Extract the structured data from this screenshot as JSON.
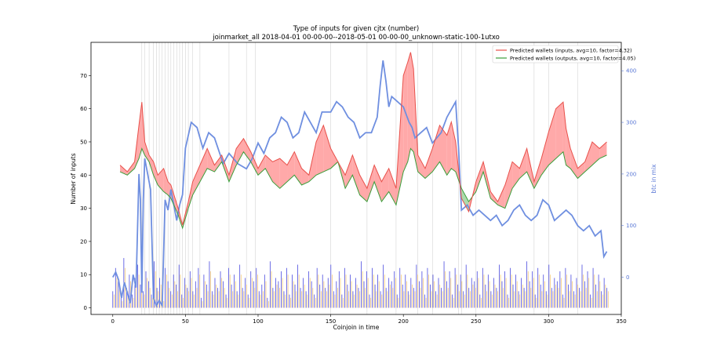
{
  "chart_data": {
    "type": "line",
    "title": "Type of inputs for given cjtx (number)",
    "subtitle": "joinmarket_all 2018-04-01 00-00-00--2018-05-01 00-00-00_unknown-static-100-1utxo",
    "xlabel": "Coinjoin in time",
    "ylabel": "Number of inputs",
    "y2label": "btc in mix",
    "xlim": [
      -15,
      350
    ],
    "ylim": [
      -2,
      80
    ],
    "y2lim": [
      -72,
      455
    ],
    "xticks": [
      "0",
      "50",
      "100",
      "150",
      "200",
      "250",
      "300",
      "350"
    ],
    "yticks": [
      "0",
      "10",
      "20",
      "30",
      "40",
      "50",
      "60",
      "70"
    ],
    "y2ticks": [
      "0",
      "100",
      "200",
      "300",
      "400"
    ],
    "legend_position": "top-right",
    "colors": {
      "inputs": "#e8504a",
      "outputs": "#3a9e3a",
      "btc": "#6f8fe0",
      "bars_blue": "#4a4adf",
      "bars_orange": "#f5c56b",
      "fill_red": "#ff9a9a",
      "fill_green": "#9ed49e",
      "vline": "#cccccc"
    },
    "series": [
      {
        "name": "Predicted wallets (inputs, avg=10, factor=4.32)",
        "x": [
          5,
          10,
          15,
          18,
          20,
          22,
          25,
          28,
          31,
          35,
          38,
          40,
          45,
          48,
          52,
          55,
          60,
          65,
          70,
          75,
          80,
          85,
          90,
          95,
          100,
          105,
          110,
          115,
          120,
          125,
          130,
          135,
          140,
          145,
          150,
          155,
          160,
          165,
          170,
          175,
          180,
          185,
          190,
          195,
          200,
          203,
          205,
          207,
          210,
          215,
          220,
          225,
          230,
          233,
          236,
          240,
          245,
          250,
          255,
          260,
          265,
          270,
          275,
          280,
          285,
          290,
          295,
          300,
          305,
          310,
          312,
          315,
          320,
          325,
          330,
          335,
          340
        ],
        "values": [
          43,
          41,
          44,
          55,
          62,
          50,
          46,
          44,
          40,
          42,
          38,
          37,
          30,
          25,
          32,
          38,
          43,
          48,
          43,
          46,
          40,
          48,
          51,
          47,
          42,
          46,
          44,
          45,
          43,
          47,
          42,
          40,
          50,
          55,
          48,
          44,
          40,
          46,
          40,
          36,
          43,
          38,
          42,
          36,
          70,
          74,
          77,
          72,
          46,
          42,
          48,
          55,
          52,
          56,
          50,
          33,
          29,
          38,
          44,
          35,
          32,
          37,
          44,
          42,
          48,
          38,
          45,
          53,
          60,
          62,
          54,
          48,
          42,
          44,
          50,
          48,
          50
        ]
      },
      {
        "name": "Predicted wallets (outputs, avg=10, factor=4.05)",
        "x": [
          5,
          10,
          15,
          18,
          20,
          22,
          25,
          28,
          31,
          35,
          38,
          40,
          45,
          48,
          52,
          55,
          60,
          65,
          70,
          75,
          80,
          85,
          90,
          95,
          100,
          105,
          110,
          115,
          120,
          125,
          130,
          135,
          140,
          145,
          150,
          155,
          160,
          165,
          170,
          175,
          180,
          185,
          190,
          195,
          200,
          203,
          205,
          207,
          210,
          215,
          220,
          225,
          230,
          233,
          236,
          240,
          245,
          250,
          255,
          260,
          265,
          270,
          275,
          280,
          285,
          290,
          295,
          300,
          305,
          310,
          312,
          315,
          320,
          325,
          330,
          335,
          340
        ],
        "values": [
          41,
          40,
          42,
          45,
          48,
          46,
          44,
          40,
          37,
          35,
          34,
          33,
          28,
          24,
          30,
          34,
          38,
          42,
          41,
          44,
          38,
          43,
          47,
          44,
          40,
          42,
          38,
          36,
          38,
          40,
          37,
          38,
          40,
          41,
          42,
          44,
          36,
          40,
          34,
          32,
          38,
          32,
          35,
          31,
          41,
          44,
          48,
          47,
          41,
          39,
          41,
          44,
          40,
          42,
          41,
          36,
          32,
          35,
          41,
          33,
          31,
          30,
          36,
          39,
          41,
          36,
          40,
          43,
          45,
          47,
          43,
          42,
          39,
          41,
          43,
          45,
          46
        ]
      },
      {
        "name": "btc in mix",
        "axis": "right",
        "x": [
          0,
          2,
          4,
          6,
          8,
          10,
          12,
          14,
          16,
          18,
          19,
          20,
          21,
          22,
          24,
          26,
          28,
          30,
          32,
          34,
          36,
          38,
          40,
          42,
          44,
          46,
          48,
          50,
          54,
          58,
          62,
          66,
          70,
          76,
          80,
          86,
          92,
          96,
          100,
          104,
          108,
          112,
          116,
          120,
          124,
          128,
          132,
          136,
          140,
          144,
          150,
          154,
          158,
          162,
          166,
          170,
          174,
          178,
          182,
          184,
          186,
          188,
          190,
          192,
          196,
          200,
          204,
          206,
          208,
          212,
          216,
          220,
          226,
          230,
          234,
          236,
          238,
          240,
          244,
          248,
          252,
          256,
          260,
          264,
          268,
          272,
          276,
          280,
          284,
          288,
          292,
          296,
          300,
          304,
          308,
          312,
          316,
          320,
          324,
          328,
          332,
          336,
          338,
          340
        ],
        "values": [
          0,
          10,
          -5,
          -40,
          -10,
          -30,
          -50,
          5,
          -20,
          200,
          150,
          -30,
          150,
          230,
          200,
          170,
          -40,
          -55,
          -45,
          -55,
          150,
          130,
          170,
          140,
          110,
          140,
          160,
          250,
          300,
          290,
          250,
          280,
          270,
          220,
          240,
          220,
          210,
          230,
          260,
          240,
          270,
          280,
          310,
          300,
          270,
          280,
          320,
          300,
          280,
          320,
          320,
          340,
          330,
          310,
          300,
          270,
          280,
          280,
          310,
          370,
          420,
          380,
          330,
          350,
          340,
          330,
          300,
          290,
          270,
          280,
          290,
          260,
          280,
          310,
          330,
          340,
          250,
          130,
          140,
          120,
          130,
          120,
          110,
          120,
          100,
          110,
          130,
          140,
          120,
          110,
          120,
          150,
          140,
          110,
          120,
          130,
          120,
          100,
          90,
          100,
          80,
          90,
          40,
          50
        ]
      }
    ],
    "bars_blue": [
      5,
      12,
      8,
      3,
      15,
      6,
      10,
      4,
      9,
      13,
      7,
      5,
      11,
      8,
      4,
      14,
      6,
      9,
      3,
      12,
      8,
      5,
      10,
      7,
      13,
      4,
      9,
      6,
      11,
      5,
      8,
      12,
      3,
      10,
      7,
      14,
      5,
      9,
      6,
      11,
      8,
      4,
      12,
      7,
      10,
      5,
      13,
      6,
      9,
      4,
      11,
      8,
      12,
      5,
      7,
      10,
      3,
      14,
      6,
      9,
      8,
      11,
      5,
      12,
      4,
      10,
      7,
      13,
      6,
      9,
      5,
      11,
      8,
      4,
      12,
      7,
      10,
      6,
      9,
      13,
      5,
      8,
      11,
      4,
      12,
      7,
      10,
      5,
      9,
      6,
      14,
      8,
      11,
      4,
      12,
      7,
      10,
      5,
      13,
      6,
      9,
      8,
      11,
      4,
      12,
      7,
      10,
      5,
      9,
      6,
      13,
      8,
      11,
      4,
      12,
      7,
      10,
      5,
      9,
      6,
      14,
      8,
      11,
      4,
      12,
      7,
      10,
      5,
      13,
      6,
      9,
      8,
      11,
      4,
      12,
      7,
      10,
      5,
      9,
      6,
      13,
      8,
      11,
      4,
      12,
      7,
      10,
      5,
      9,
      6,
      14,
      8,
      11,
      4,
      12,
      7,
      10,
      5,
      13,
      6,
      9,
      8,
      11,
      4,
      12,
      7,
      10,
      5,
      9,
      6,
      13,
      8,
      11,
      4,
      12,
      7,
      10,
      5,
      9,
      6
    ],
    "bars_orange": [
      4,
      9,
      6,
      2,
      12,
      5,
      8,
      3,
      7,
      10,
      6,
      4,
      9,
      6,
      3,
      11,
      5,
      7,
      2,
      10,
      6,
      4,
      8,
      5,
      10,
      3,
      7,
      5,
      9,
      4,
      6,
      10,
      2,
      8,
      5,
      11,
      4,
      7,
      5,
      9,
      6,
      3,
      10,
      5,
      8,
      4,
      10,
      5,
      7,
      3,
      9,
      6,
      10,
      4,
      5,
      8,
      2,
      11,
      5,
      7,
      6,
      9,
      4,
      10,
      3,
      8,
      5,
      10,
      5,
      7,
      4,
      9,
      6,
      3,
      10,
      5,
      8,
      5,
      7,
      10,
      4,
      6,
      9,
      3,
      10,
      5,
      8,
      4,
      7,
      5,
      11,
      6,
      9,
      3,
      10,
      5,
      8,
      4,
      10,
      5,
      7,
      6,
      9,
      3,
      10,
      5,
      8,
      4,
      7,
      5,
      10,
      6,
      9,
      3,
      10,
      5,
      8,
      4,
      7,
      5,
      11,
      6,
      9,
      3,
      10,
      5,
      8,
      4,
      10,
      5,
      7,
      6,
      9,
      3,
      10,
      5,
      8,
      4,
      7,
      5,
      10,
      6,
      9,
      3,
      10,
      5,
      8,
      4,
      7,
      5,
      11,
      6,
      9,
      3,
      10,
      5,
      8,
      4,
      10,
      5,
      7,
      6,
      9,
      3,
      10,
      5,
      8,
      4,
      7,
      5,
      10,
      6,
      9,
      3,
      10,
      5,
      8,
      4,
      7,
      5
    ],
    "vlines": [
      20,
      22,
      25,
      28,
      30,
      32,
      34,
      36,
      38,
      40,
      42,
      44,
      46,
      48,
      50,
      52,
      55,
      60,
      80,
      92,
      98,
      150,
      175,
      195,
      210,
      220,
      238,
      240,
      250,
      290,
      300,
      320
    ]
  }
}
